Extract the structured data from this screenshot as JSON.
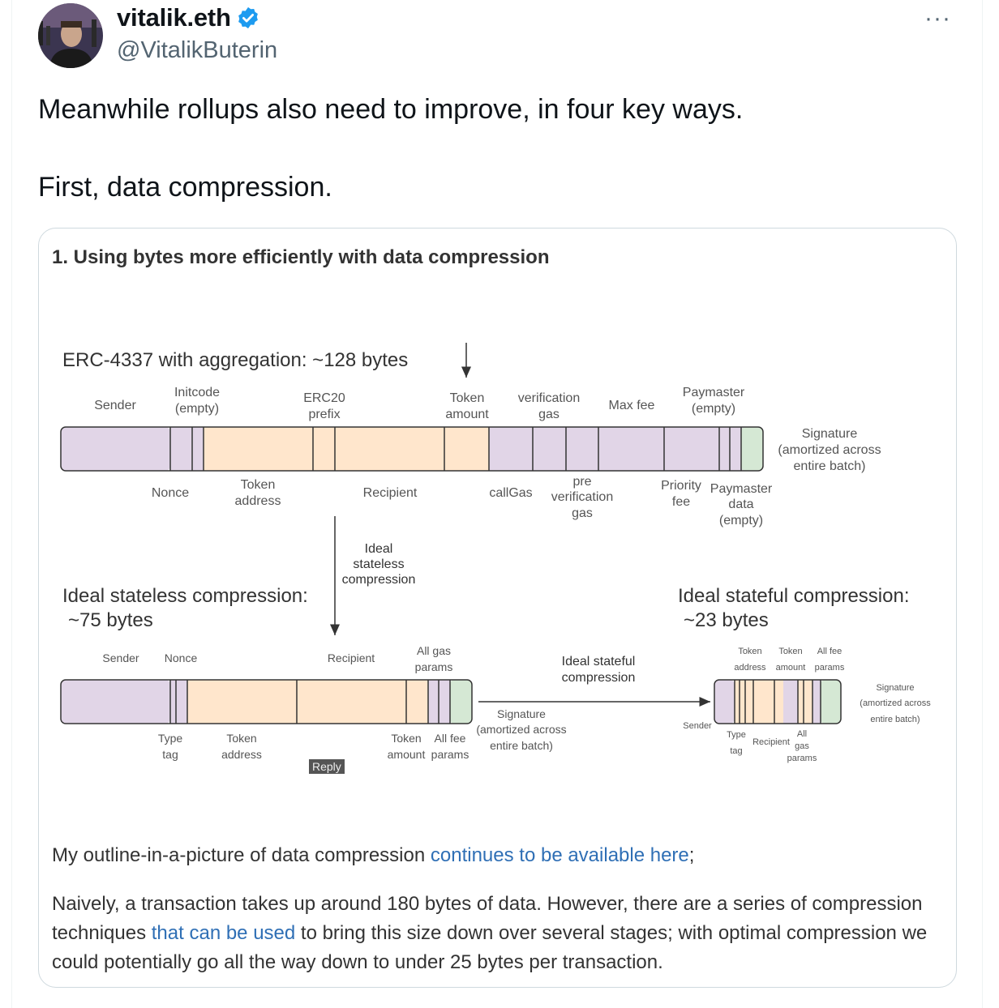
{
  "author": {
    "name": "vitalik.eth",
    "handle": "@VitalikButerin",
    "avatar_icon": "profile-photo",
    "verified_icon": "verified-badge-icon",
    "verified_color": "#1d9bf0"
  },
  "more_label": "···",
  "tweet": {
    "line1": "Meanwhile rollups also need to improve, in four key ways.",
    "line2": "First, data compression."
  },
  "card": {
    "heading": "1. Using bytes more efficiently with data compression",
    "reply_badge": "Reply",
    "para1_prefix": "My outline-in-a-picture of data compression ",
    "para1_link": "continues to be available here",
    "para1_suffix": ";",
    "para2_part1": "Naively, a transaction takes up around 180 bytes of data. However, there are a series of compression techniques ",
    "para2_link": "that can be used",
    "para2_part2": " to bring this size down over several stages; with optimal compression we could potentially go all the way down to under 25 bytes per transaction.",
    "link_color": "#2f6fb5"
  },
  "diagram": {
    "top": {
      "title": "ERC-4337 with aggregation: ~128 bytes",
      "above_labels": [
        "Sender",
        "Initcode",
        "(empty)",
        "ERC20",
        "prefix",
        "Token",
        "amount",
        "verification",
        "gas",
        "Max fee",
        "Paymaster",
        "(empty)"
      ],
      "below_labels": [
        "Nonce",
        "Token",
        "address",
        "Recipient",
        "callGas",
        "pre",
        "verification",
        "gas",
        "Priority",
        "fee",
        "Paymaster",
        "data",
        "(empty)"
      ],
      "signature_label": [
        "Signature",
        "(amortized across",
        "entire batch)"
      ]
    },
    "arrow_label": [
      "Ideal",
      "stateless",
      "compression"
    ],
    "middle": {
      "title": [
        "Ideal stateless compression:",
        "~75 bytes"
      ],
      "above_labels": [
        "Sender",
        "Nonce",
        "Recipient",
        "All gas",
        "params"
      ],
      "below_labels": [
        "Type",
        "tag",
        "Token",
        "address",
        "Token",
        "amount",
        "All fee",
        "params"
      ]
    },
    "stateful_arrow_label": [
      "Ideal stateful",
      "compression"
    ],
    "middle_signature": [
      "Signature",
      "(amortized across",
      "entire batch)"
    ],
    "right": {
      "title": [
        "Ideal stateful compression:",
        "~23 bytes"
      ],
      "above_labels": [
        "Token",
        "address",
        "Token",
        "amount",
        "All fee",
        "params"
      ],
      "below_labels": [
        "Sender",
        "Type",
        "tag",
        "Recipient",
        "All",
        "gas",
        "params"
      ],
      "signature_label": [
        "Signature",
        "(amortized across",
        "entire batch)"
      ]
    },
    "colors": {
      "purple": "#e1d5e7",
      "orange": "#ffe6cc",
      "green": "#d5e8d4",
      "stroke": "#333333"
    }
  }
}
